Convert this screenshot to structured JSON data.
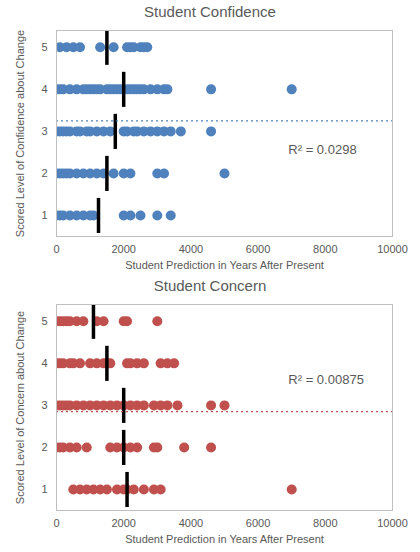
{
  "chart_data": [
    {
      "type": "scatter",
      "title": "Student Confidence",
      "x_label": "Student Prediction in Years After Present",
      "y_label": "Scored Level of Confidence about Change",
      "xlim": [
        0,
        10000
      ],
      "xticks": [
        0,
        2000,
        4000,
        6000,
        8000,
        10000
      ],
      "ylim": [
        0.5,
        5.4
      ],
      "yticks": [
        1,
        2,
        3,
        4,
        5
      ],
      "grid": false,
      "series": [
        {
          "type": "scatter",
          "marker": "circle",
          "color": "#4f81bd",
          "x": [
            100,
            300,
            500,
            700,
            1300,
            1700,
            2100,
            2200,
            2300,
            2500,
            2600,
            2700
          ],
          "values": [
            5,
            5,
            5,
            5,
            5,
            5,
            5,
            5,
            5,
            5,
            5,
            5
          ]
        },
        {
          "type": "scatter",
          "marker": "circle",
          "color": "#4f81bd",
          "x": [
            0,
            100,
            200,
            400,
            600,
            800,
            900,
            1000,
            1100,
            1200,
            1300,
            1500,
            1600,
            1700,
            1800,
            1900,
            2100,
            2200,
            2300,
            2400,
            2500,
            2600,
            2800,
            3000,
            3200,
            3300,
            4600,
            7000
          ],
          "values": [
            4,
            4,
            4,
            4,
            4,
            4,
            4,
            4,
            4,
            4,
            4,
            4,
            4,
            4,
            4,
            4,
            4,
            4,
            4,
            4,
            4,
            4,
            4,
            4,
            4,
            4,
            4,
            4
          ]
        },
        {
          "type": "scatter",
          "marker": "circle",
          "color": "#4f81bd",
          "x": [
            0,
            100,
            200,
            300,
            400,
            600,
            700,
            900,
            1000,
            1200,
            1400,
            1600,
            2000,
            2100,
            2300,
            2400,
            2600,
            2800,
            3000,
            3200,
            3400,
            3700,
            4600
          ],
          "values": [
            3,
            3,
            3,
            3,
            3,
            3,
            3,
            3,
            3,
            3,
            3,
            3,
            3,
            3,
            3,
            3,
            3,
            3,
            3,
            3,
            3,
            3,
            3
          ]
        },
        {
          "type": "scatter",
          "marker": "circle",
          "color": "#4f81bd",
          "x": [
            0,
            100,
            200,
            300,
            400,
            600,
            800,
            1000,
            1200,
            1400,
            1700,
            2000,
            2200,
            3000,
            3200,
            5000
          ],
          "values": [
            2,
            2,
            2,
            2,
            2,
            2,
            2,
            2,
            2,
            2,
            2,
            2,
            2,
            2,
            2,
            2
          ]
        },
        {
          "type": "scatter",
          "marker": "circle",
          "color": "#4f81bd",
          "x": [
            0,
            100,
            200,
            400,
            600,
            800,
            1000,
            1100,
            2000,
            2200,
            2500,
            3000,
            3400
          ],
          "values": [
            1,
            1,
            1,
            1,
            1,
            1,
            1,
            1,
            1,
            1,
            1,
            1,
            1
          ]
        },
        {
          "type": "scatter",
          "marker": "vline",
          "color": "#000000",
          "x": [
            1500,
            2000,
            1750,
            1500,
            1250
          ],
          "values": [
            5,
            4,
            3,
            2,
            1
          ]
        },
        {
          "type": "hline",
          "line_style": "dotted",
          "color": "#4f81bd",
          "values": [
            3.25
          ]
        }
      ],
      "annotations": [
        {
          "text": "R² = 0.0298",
          "x": 6900,
          "y": 2.55
        }
      ]
    },
    {
      "type": "scatter",
      "title": "Student Concern",
      "x_label": "Student Prediction in Years After Present",
      "y_label": "Scored Level of Concern about Change",
      "xlim": [
        0,
        10000
      ],
      "xticks": [
        0,
        2000,
        4000,
        6000,
        8000,
        10000
      ],
      "ylim": [
        0.5,
        5.4
      ],
      "yticks": [
        1,
        2,
        3,
        4,
        5
      ],
      "grid": false,
      "series": [
        {
          "type": "scatter",
          "marker": "circle",
          "color": "#c0504d",
          "x": [
            0,
            100,
            200,
            300,
            400,
            600,
            800,
            1200,
            1400,
            2000,
            2100,
            3000
          ],
          "values": [
            5,
            5,
            5,
            5,
            5,
            5,
            5,
            5,
            5,
            5,
            5,
            5
          ]
        },
        {
          "type": "scatter",
          "marker": "circle",
          "color": "#c0504d",
          "x": [
            0,
            100,
            200,
            400,
            500,
            700,
            1000,
            1200,
            1400,
            1500,
            1600,
            2100,
            2200,
            2400,
            2600,
            3100,
            3300,
            3500
          ],
          "values": [
            4,
            4,
            4,
            4,
            4,
            4,
            4,
            4,
            4,
            4,
            4,
            4,
            4,
            4,
            4,
            4,
            4,
            4
          ]
        },
        {
          "type": "scatter",
          "marker": "circle",
          "color": "#c0504d",
          "x": [
            0,
            100,
            200,
            300,
            400,
            600,
            800,
            1000,
            1200,
            1400,
            1600,
            1800,
            2000,
            2200,
            2400,
            2600,
            2900,
            3100,
            3300,
            3600,
            4600,
            5000
          ],
          "values": [
            3,
            3,
            3,
            3,
            3,
            3,
            3,
            3,
            3,
            3,
            3,
            3,
            3,
            3,
            3,
            3,
            3,
            3,
            3,
            3,
            3,
            3
          ]
        },
        {
          "type": "scatter",
          "marker": "circle",
          "color": "#c0504d",
          "x": [
            0,
            100,
            200,
            400,
            600,
            900,
            1600,
            1800,
            2000,
            2200,
            2400,
            2900,
            3000,
            3800,
            4600
          ],
          "values": [
            2,
            2,
            2,
            2,
            2,
            2,
            2,
            2,
            2,
            2,
            2,
            2,
            2,
            2,
            2
          ]
        },
        {
          "type": "scatter",
          "marker": "circle",
          "color": "#c0504d",
          "x": [
            500,
            700,
            900,
            1100,
            1300,
            1500,
            1800,
            2000,
            2100,
            2300,
            2600,
            2900,
            3100,
            7000
          ],
          "values": [
            1,
            1,
            1,
            1,
            1,
            1,
            1,
            1,
            1,
            1,
            1,
            1,
            1,
            1
          ]
        },
        {
          "type": "scatter",
          "marker": "vline",
          "color": "#000000",
          "x": [
            1100,
            1500,
            2000,
            2000,
            2100
          ],
          "values": [
            5,
            4,
            3,
            2,
            1
          ]
        },
        {
          "type": "hline",
          "line_style": "dotted",
          "color": "#c0504d",
          "values": [
            2.85
          ]
        }
      ],
      "annotations": [
        {
          "text": "R² = 0.00875",
          "x": 6900,
          "y": 3.6
        }
      ]
    }
  ]
}
